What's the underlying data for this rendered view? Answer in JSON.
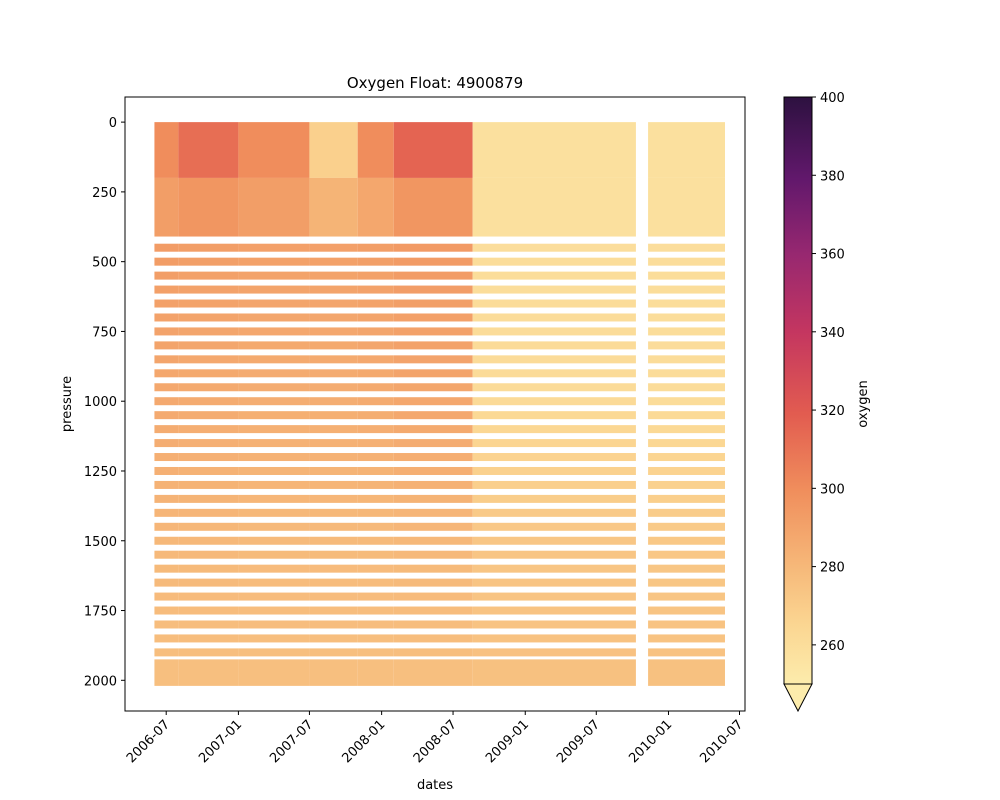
{
  "chart_data": {
    "type": "heatmap",
    "title": "Oxygen Float: 4900879",
    "xlabel": "dates",
    "ylabel": "pressure",
    "x_ticks": [
      "2006-07",
      "2007-01",
      "2007-07",
      "2008-01",
      "2008-07",
      "2009-01",
      "2009-07",
      "2010-01",
      "2010-07"
    ],
    "xlim": [
      "2006-03-18",
      "2010-07-15"
    ],
    "y_ticks": [
      0,
      250,
      500,
      750,
      1000,
      1250,
      1500,
      1750,
      2000
    ],
    "ylim": [
      2110,
      -90
    ],
    "y_inverted": true,
    "grid": false,
    "colorbar": {
      "label": "oxygen",
      "ticks": [
        260,
        280,
        300,
        320,
        340,
        360,
        380,
        400
      ],
      "range": [
        250,
        400
      ],
      "extend": "min",
      "colormap": "magma_r"
    },
    "data_extent": {
      "first_profile": "2006-06-01",
      "last_profile": "2010-05-25",
      "data_gap": [
        "2009-10-10",
        "2009-11-10"
      ],
      "max_pressure": 2020
    },
    "oxygen_by_period": [
      {
        "start": "2006-06-01",
        "end": "2006-08-01",
        "surface_0_200": 300,
        "upper_200_400": 292,
        "depth_500": 293,
        "depth_1000": 287,
        "depth_1500": 280,
        "depth_2000": 276
      },
      {
        "start": "2006-08-01",
        "end": "2007-01-01",
        "surface_0_200": 312,
        "upper_200_400": 296,
        "depth_500": 292,
        "depth_1000": 286,
        "depth_1500": 280,
        "depth_2000": 276
      },
      {
        "start": "2007-01-01",
        "end": "2007-07-01",
        "surface_0_200": 300,
        "upper_200_400": 292,
        "depth_500": 291,
        "depth_1000": 285,
        "depth_1500": 279,
        "depth_2000": 276
      },
      {
        "start": "2007-07-01",
        "end": "2007-11-01",
        "surface_0_200": 268,
        "upper_200_400": 282,
        "depth_500": 291,
        "depth_1000": 285,
        "depth_1500": 279,
        "depth_2000": 276
      },
      {
        "start": "2007-11-01",
        "end": "2008-02-01",
        "surface_0_200": 300,
        "upper_200_400": 288,
        "depth_500": 292,
        "depth_1000": 286,
        "depth_1500": 279,
        "depth_2000": 276
      },
      {
        "start": "2008-02-01",
        "end": "2008-08-20",
        "surface_0_200": 316,
        "upper_200_400": 296,
        "depth_500": 294,
        "depth_1000": 288,
        "depth_1500": 280,
        "depth_2000": 276
      },
      {
        "start": "2008-08-20",
        "end": "2009-10-10",
        "surface_0_200": 258,
        "upper_200_400": 258,
        "depth_500": 260,
        "depth_1000": 262,
        "depth_1500": 273,
        "depth_2000": 276
      },
      {
        "start": "2009-11-10",
        "end": "2010-05-25",
        "surface_0_200": 258,
        "upper_200_400": 258,
        "depth_500": 260,
        "depth_1000": 261,
        "depth_1500": 272,
        "depth_2000": 276
      }
    ]
  }
}
